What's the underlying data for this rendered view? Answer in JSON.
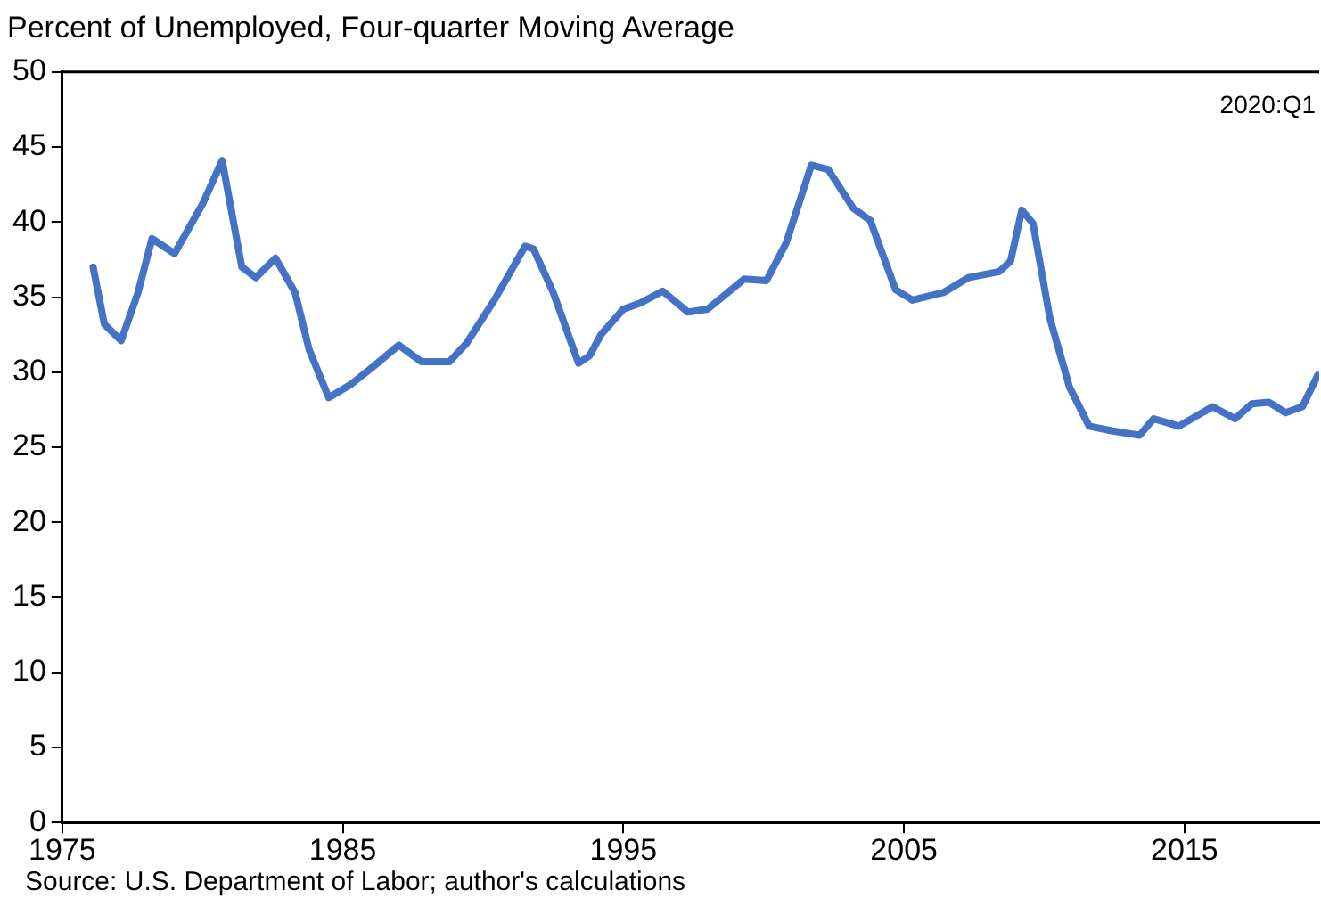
{
  "chart_data": {
    "type": "line",
    "title": "Percent of Unemployed, Four-quarter Moving Average",
    "annotations": [
      "2020:Q1",
      "Source: U.S. Department of Labor; author's calculations"
    ],
    "x": [
      1976.1,
      1976.5,
      1977.1,
      1977.7,
      1978.2,
      1979.0,
      1980.0,
      1980.7,
      1981.4,
      1981.9,
      1982.6,
      1983.3,
      1983.8,
      1984.5,
      1985.3,
      1986.1,
      1987.0,
      1987.8,
      1988.8,
      1989.4,
      1990.4,
      1991.5,
      1991.8,
      1992.5,
      1993.4,
      1993.8,
      1994.2,
      1995.0,
      1995.6,
      1996.4,
      1997.3,
      1998.0,
      1999.3,
      2000.1,
      2000.8,
      2001.7,
      2002.3,
      2003.2,
      2003.8,
      2004.7,
      2005.3,
      2006.4,
      2007.3,
      2008.4,
      2008.8,
      2009.2,
      2009.6,
      2010.2,
      2010.9,
      2011.6,
      2012.4,
      2013.4,
      2013.9,
      2014.8,
      2016.0,
      2016.8,
      2017.4,
      2018.0,
      2018.6,
      2019.2,
      2019.75
    ],
    "series": [
      {
        "color": "#4472c4",
        "values": [
          37.0,
          33.2,
          32.1,
          35.3,
          38.9,
          37.9,
          41.2,
          44.1,
          37.0,
          36.3,
          37.6,
          35.3,
          31.5,
          28.3,
          29.2,
          30.4,
          31.8,
          30.7,
          30.7,
          31.9,
          34.8,
          38.4,
          38.2,
          35.3,
          30.6,
          31.1,
          32.5,
          34.2,
          34.6,
          35.4,
          34.0,
          34.2,
          36.2,
          36.1,
          38.6,
          43.8,
          43.5,
          40.9,
          40.1,
          35.5,
          34.8,
          35.3,
          36.3,
          36.7,
          37.4,
          40.8,
          39.9,
          33.6,
          29.0,
          26.4,
          26.1,
          25.8,
          26.9,
          26.4,
          27.7,
          26.9,
          27.9,
          28.0,
          27.3,
          27.7,
          29.8
        ]
      }
    ],
    "xlim": [
      1975,
      2019.8
    ],
    "xticks": [
      1975,
      1985,
      1995,
      2005,
      2015
    ],
    "ylim": [
      0,
      50
    ],
    "yticks": [
      0,
      5,
      10,
      15,
      20,
      25,
      30,
      35,
      40,
      45,
      50
    ],
    "grid": false,
    "legend": false,
    "marker": "none",
    "line_style": "solid"
  }
}
